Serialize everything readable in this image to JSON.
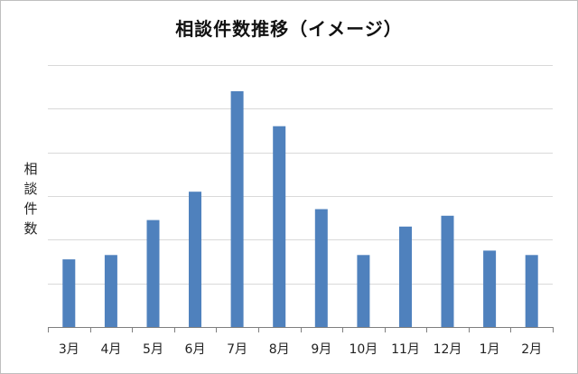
{
  "chart_data": {
    "type": "bar",
    "title": "相談件数推移（イメージ）",
    "ylabel": "相談件数",
    "xlabel": "",
    "categories": [
      "3月",
      "4月",
      "5月",
      "6月",
      "7月",
      "8月",
      "9月",
      "10月",
      "11月",
      "12月",
      "1月",
      "2月"
    ],
    "values": [
      1.55,
      1.65,
      2.45,
      3.1,
      5.4,
      4.6,
      2.7,
      1.65,
      2.3,
      2.55,
      1.75,
      1.65
    ],
    "ylim": [
      0,
      6
    ],
    "y_tick_labels_shown": false,
    "grid": true,
    "bar_color": "#4f81bd",
    "grid_color": "#d9d9d9",
    "axis_color": "#7f7f7f"
  }
}
